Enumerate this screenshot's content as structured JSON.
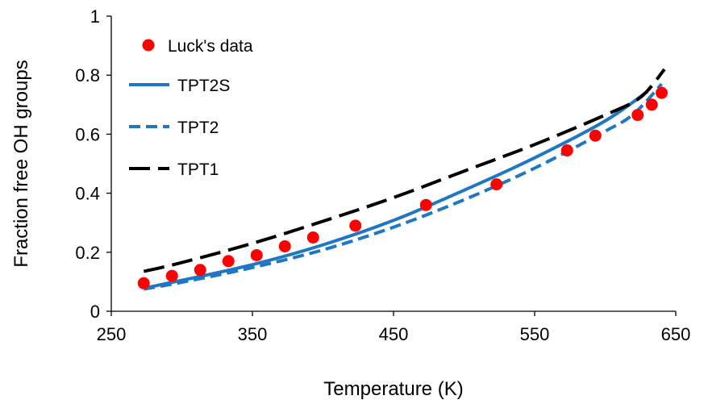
{
  "chart_data": {
    "type": "line",
    "xlabel": "Temperature (K)",
    "ylabel": "Fraction free OH groups",
    "xlim": [
      250,
      650
    ],
    "ylim": [
      0,
      1
    ],
    "xticks": [
      250,
      350,
      450,
      550,
      650
    ],
    "yticks": [
      0,
      0.2,
      0.4,
      0.6,
      0.8,
      1
    ],
    "ytick_labels": [
      "0",
      "0.2",
      "0.4",
      "0.6",
      "0.8",
      "1"
    ],
    "grid": false,
    "legend_position": "top-left",
    "series": [
      {
        "name": "Luck's data",
        "kind": "scatter",
        "color": "#ff0000",
        "points": [
          [
            273,
            0.095
          ],
          [
            293,
            0.12
          ],
          [
            313,
            0.14
          ],
          [
            333,
            0.17
          ],
          [
            353,
            0.19
          ],
          [
            373,
            0.22
          ],
          [
            393,
            0.25
          ],
          [
            423,
            0.29
          ],
          [
            473,
            0.36
          ],
          [
            523,
            0.43
          ],
          [
            573,
            0.545
          ],
          [
            593,
            0.595
          ],
          [
            623,
            0.665
          ],
          [
            633,
            0.7
          ],
          [
            640,
            0.74
          ]
        ]
      },
      {
        "name": "TPT2S",
        "kind": "line",
        "dash": "solid",
        "color": "#1f77c4",
        "points": [
          [
            273,
            0.078
          ],
          [
            300,
            0.105
          ],
          [
            350,
            0.158
          ],
          [
            400,
            0.225
          ],
          [
            450,
            0.308
          ],
          [
            500,
            0.41
          ],
          [
            550,
            0.52
          ],
          [
            600,
            0.645
          ],
          [
            630,
            0.745
          ]
        ]
      },
      {
        "name": "TPT2",
        "kind": "line",
        "dash": "short-dash",
        "color": "#1f77c4",
        "points": [
          [
            273,
            0.075
          ],
          [
            300,
            0.098
          ],
          [
            350,
            0.148
          ],
          [
            400,
            0.208
          ],
          [
            450,
            0.285
          ],
          [
            500,
            0.378
          ],
          [
            550,
            0.485
          ],
          [
            600,
            0.61
          ],
          [
            620,
            0.668
          ],
          [
            640,
            0.77
          ]
        ]
      },
      {
        "name": "TPT1",
        "kind": "line",
        "dash": "long-dash",
        "color": "#000000",
        "points": [
          [
            273,
            0.135
          ],
          [
            300,
            0.165
          ],
          [
            350,
            0.23
          ],
          [
            400,
            0.305
          ],
          [
            450,
            0.385
          ],
          [
            500,
            0.475
          ],
          [
            550,
            0.565
          ],
          [
            600,
            0.665
          ],
          [
            625,
            0.725
          ],
          [
            642,
            0.82
          ]
        ]
      }
    ]
  }
}
